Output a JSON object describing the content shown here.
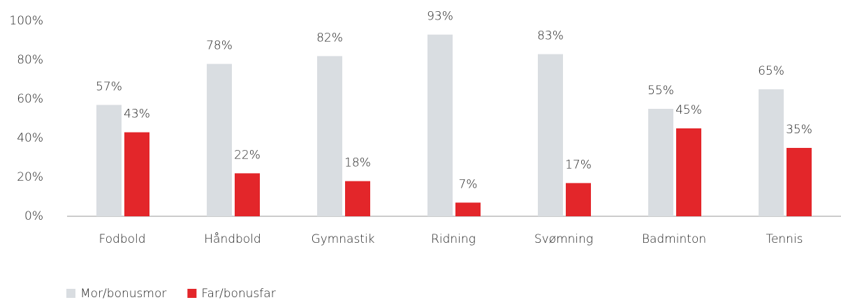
{
  "chart_data": {
    "type": "bar",
    "categories": [
      "Fodbold",
      "Håndbold",
      "Gymnastik",
      "Ridning",
      "Svømning",
      "Badminton",
      "Tennis"
    ],
    "series": [
      {
        "name": "Mor/bonusmor",
        "color": "#d9dde1",
        "values": [
          57,
          78,
          82,
          93,
          83,
          55,
          65
        ],
        "value_labels": [
          "57%",
          "78%",
          "82%",
          "93%",
          "83%",
          "55%",
          "65%"
        ]
      },
      {
        "name": "Far/bonusfar",
        "color": "#e3262a",
        "values": [
          43,
          22,
          18,
          7,
          17,
          45,
          35
        ],
        "value_labels": [
          "43%",
          "22%",
          "18%",
          "7%",
          "17%",
          "45%",
          "35%"
        ]
      }
    ],
    "ylim": [
      0,
      100
    ],
    "yticks": [
      {
        "value": 0,
        "label": "0%"
      },
      {
        "value": 20,
        "label": "20%"
      },
      {
        "value": 40,
        "label": "40%"
      },
      {
        "value": 60,
        "label": "60%"
      },
      {
        "value": 80,
        "label": "80%"
      },
      {
        "value": 100,
        "label": "100%"
      }
    ],
    "legend": "bottom-left"
  }
}
